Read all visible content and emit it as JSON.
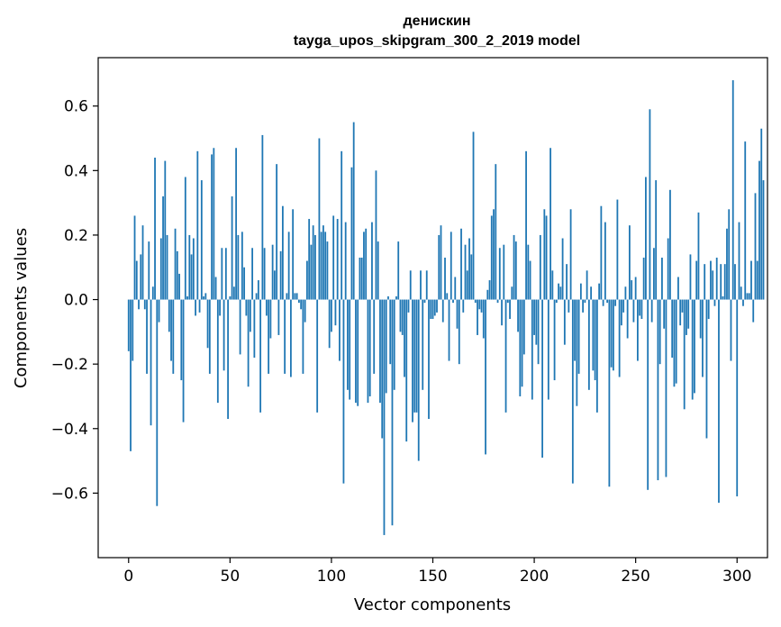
{
  "chart_data": {
    "type": "bar",
    "title": "денискин",
    "subtitle": "tayga_upos_skipgram_300_2_2019 model",
    "xlabel": "Vector components",
    "ylabel": "Components values",
    "xlim": [
      -15,
      315
    ],
    "ylim": [
      -0.8,
      0.75
    ],
    "xticks": [
      0,
      50,
      100,
      150,
      200,
      250,
      300
    ],
    "yticks": [
      -0.6,
      -0.4,
      -0.2,
      0.0,
      0.2,
      0.4,
      0.6
    ],
    "xtick_labels": [
      "0",
      "50",
      "100",
      "150",
      "200",
      "250",
      "300"
    ],
    "ytick_labels": [
      "−0.6",
      "−0.4",
      "−0.2",
      "0.0",
      "0.2",
      "0.4",
      "0.6"
    ],
    "bar_color": "#1f77b4",
    "values": [
      -0.16,
      -0.47,
      -0.19,
      0.26,
      0.12,
      -0.03,
      0.14,
      0.23,
      -0.03,
      -0.23,
      0.18,
      -0.39,
      0.04,
      0.44,
      -0.64,
      -0.07,
      0.19,
      0.32,
      0.43,
      0.2,
      -0.1,
      -0.19,
      -0.23,
      0.22,
      0.15,
      0.08,
      -0.25,
      -0.38,
      0.38,
      0.01,
      0.2,
      0.14,
      0.19,
      -0.05,
      0.46,
      -0.04,
      0.37,
      0.01,
      0.02,
      -0.15,
      -0.23,
      0.45,
      0.47,
      0.07,
      -0.32,
      -0.05,
      0.16,
      -0.22,
      0.16,
      -0.37,
      0.01,
      0.32,
      0.04,
      0.47,
      0.2,
      -0.17,
      0.21,
      0.1,
      -0.05,
      -0.27,
      -0.1,
      0.16,
      -0.18,
      0.02,
      0.06,
      -0.35,
      0.51,
      0.16,
      -0.05,
      -0.23,
      -0.12,
      0.17,
      0.09,
      0.42,
      -0.11,
      0.15,
      0.29,
      -0.23,
      0.02,
      0.21,
      -0.24,
      0.28,
      0.02,
      0.02,
      -0.01,
      -0.03,
      -0.23,
      -0.07,
      0.12,
      0.25,
      0.17,
      0.23,
      0.2,
      -0.35,
      0.5,
      0.21,
      0.23,
      0.21,
      0.18,
      -0.15,
      -0.1,
      0.26,
      -0.08,
      0.25,
      -0.19,
      0.46,
      -0.57,
      0.24,
      -0.28,
      -0.31,
      0.41,
      0.55,
      -0.32,
      -0.33,
      0.13,
      0.13,
      0.21,
      0.22,
      -0.32,
      -0.3,
      0.24,
      -0.23,
      0.4,
      0.18,
      -0.32,
      -0.43,
      -0.73,
      -0.29,
      0.01,
      -0.2,
      -0.7,
      -0.28,
      0.01,
      0.18,
      -0.1,
      -0.11,
      -0.24,
      -0.44,
      -0.04,
      0.09,
      -0.38,
      -0.35,
      -0.35,
      -0.5,
      0.09,
      -0.28,
      -0.01,
      0.09,
      -0.37,
      -0.06,
      -0.06,
      -0.05,
      -0.04,
      0.2,
      0.23,
      -0.07,
      0.13,
      0.02,
      -0.19,
      0.21,
      -0.01,
      0.07,
      -0.09,
      -0.2,
      0.22,
      -0.04,
      0.17,
      0.09,
      0.19,
      0.14,
      0.52,
      -0.01,
      -0.11,
      -0.03,
      -0.04,
      -0.12,
      -0.48,
      0.03,
      0.06,
      0.26,
      0.28,
      0.42,
      -0.01,
      0.16,
      -0.08,
      0.17,
      -0.35,
      -0.01,
      -0.06,
      0.04,
      0.2,
      0.18,
      -0.1,
      -0.3,
      -0.27,
      -0.17,
      0.46,
      0.17,
      0.12,
      -0.31,
      -0.11,
      -0.14,
      -0.2,
      0.2,
      -0.49,
      0.28,
      0.26,
      -0.31,
      0.47,
      0.09,
      -0.25,
      -0.01,
      0.05,
      0.04,
      0.19,
      -0.14,
      0.11,
      -0.04,
      0.28,
      -0.57,
      -0.19,
      -0.33,
      -0.23,
      0.05,
      -0.04,
      -0.01,
      0.09,
      -0.28,
      0.04,
      -0.22,
      -0.25,
      -0.35,
      0.05,
      0.29,
      -0.02,
      0.24,
      -0.01,
      -0.58,
      -0.21,
      -0.22,
      -0.02,
      0.31,
      -0.24,
      -0.08,
      -0.04,
      0.04,
      -0.12,
      0.23,
      0.06,
      -0.07,
      0.07,
      -0.19,
      -0.05,
      -0.06,
      0.13,
      0.38,
      -0.59,
      0.59,
      -0.07,
      0.16,
      0.37,
      -0.56,
      -0.2,
      0.13,
      -0.09,
      -0.55,
      0.19,
      0.34,
      -0.18,
      -0.27,
      -0.26,
      0.07,
      -0.08,
      -0.04,
      -0.34,
      -0.11,
      -0.09,
      0.14,
      -0.31,
      -0.29,
      0.12,
      0.27,
      -0.12,
      -0.24,
      0.11,
      -0.43,
      -0.06,
      0.12,
      0.09,
      -0.02,
      0.13,
      -0.63,
      0.11,
      0.01,
      0.11,
      0.22,
      0.28,
      -0.19,
      0.68,
      0.11,
      -0.61,
      0.24,
      0.04,
      -0.02,
      0.49,
      0.02,
      0.02,
      0.12,
      -0.07,
      0.33,
      0.12,
      0.43,
      0.53,
      0.37
    ]
  }
}
